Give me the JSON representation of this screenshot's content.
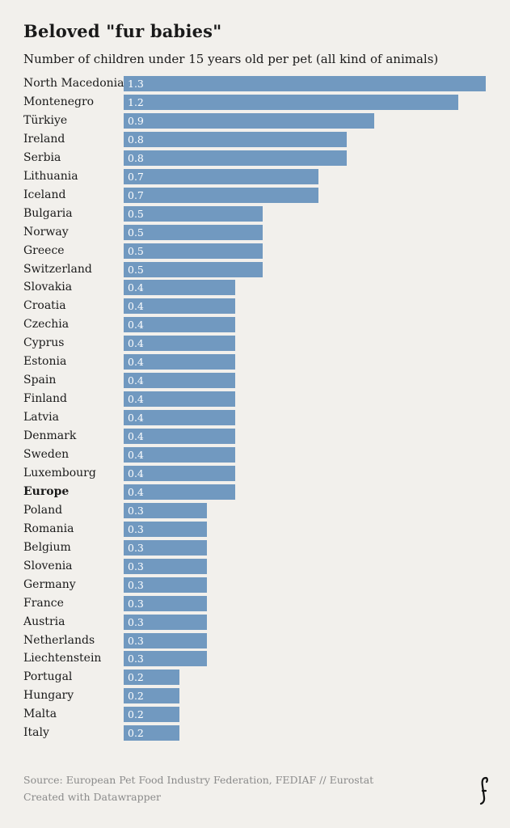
{
  "colors": {
    "bar": "#7199c0",
    "background": "#f2f0ec",
    "bar_value_text": "#ffffff"
  },
  "chart_data": {
    "type": "bar",
    "orientation": "horizontal",
    "title": "Beloved \"fur babies\"",
    "subtitle": "Number of children under 15 years old per pet (all kind of animals)",
    "categories": [
      "North Macedonia",
      "Montenegro",
      "Türkiye",
      "Ireland",
      "Serbia",
      "Lithuania",
      "Iceland",
      "Bulgaria",
      "Norway",
      "Greece",
      "Switzerland",
      "Slovakia",
      "Croatia",
      "Czechia",
      "Cyprus",
      "Estonia",
      "Spain",
      "Finland",
      "Latvia",
      "Denmark",
      "Sweden",
      "Luxembourg",
      "Europe",
      "Poland",
      "Romania",
      "Belgium",
      "Slovenia",
      "Germany",
      "France",
      "Austria",
      "Netherlands",
      "Liechtenstein",
      "Portugal",
      "Hungary",
      "Malta",
      "Italy"
    ],
    "values": [
      1.3,
      1.2,
      0.9,
      0.8,
      0.8,
      0.7,
      0.7,
      0.5,
      0.5,
      0.5,
      0.5,
      0.4,
      0.4,
      0.4,
      0.4,
      0.4,
      0.4,
      0.4,
      0.4,
      0.4,
      0.4,
      0.4,
      0.4,
      0.3,
      0.3,
      0.3,
      0.3,
      0.3,
      0.3,
      0.3,
      0.3,
      0.3,
      0.2,
      0.2,
      0.2,
      0.2
    ],
    "highlighted": [
      "Europe"
    ],
    "xlim": [
      0,
      1.3
    ]
  },
  "footer": {
    "source": "Source: European Pet Food Industry Federation, FEDIAF // Eurostat",
    "credit": "Created with Datawrapper"
  },
  "logo_icon": "publisher-logo-icon"
}
